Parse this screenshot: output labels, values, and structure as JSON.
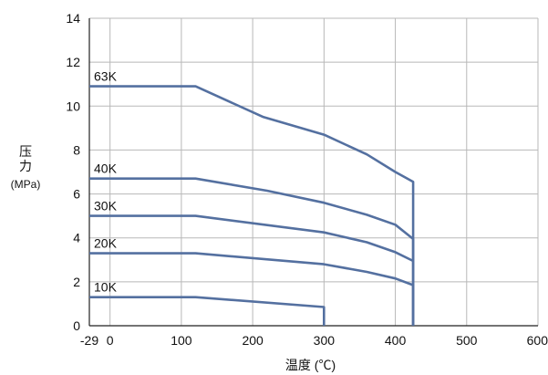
{
  "chart_data": {
    "type": "line",
    "title": "",
    "ylabel_lines": [
      "压",
      "力"
    ],
    "ylabel_unit": "(MPa)",
    "xlabel": "温度 (℃)",
    "xlim": [
      -29,
      600
    ],
    "ylim": [
      0,
      14
    ],
    "x_ticks": [
      0,
      100,
      200,
      300,
      400,
      500,
      600
    ],
    "x_tick_labels": [
      "0",
      "100",
      "200",
      "300",
      "400",
      "500",
      "600"
    ],
    "x_min_label": "-29",
    "y_ticks": [
      0,
      2,
      4,
      6,
      8,
      10,
      12,
      14
    ],
    "y_tick_labels": [
      "0",
      "2",
      "4",
      "6",
      "8",
      "10",
      "12",
      "14"
    ],
    "grid": true,
    "line_color": "#5470a0",
    "series": [
      {
        "name": "63K",
        "points": [
          [
            -29,
            10.9
          ],
          [
            120,
            10.9
          ],
          [
            215,
            9.5
          ],
          [
            300,
            8.7
          ],
          [
            360,
            7.8
          ],
          [
            400,
            7.0
          ],
          [
            425,
            6.55
          ],
          [
            425,
            0
          ]
        ]
      },
      {
        "name": "40K",
        "points": [
          [
            -29,
            6.7
          ],
          [
            120,
            6.7
          ],
          [
            220,
            6.15
          ],
          [
            300,
            5.6
          ],
          [
            360,
            5.05
          ],
          [
            400,
            4.6
          ],
          [
            425,
            3.95
          ],
          [
            425,
            0
          ]
        ]
      },
      {
        "name": "30K",
        "points": [
          [
            -29,
            5.0
          ],
          [
            120,
            5.0
          ],
          [
            300,
            4.25
          ],
          [
            360,
            3.8
          ],
          [
            400,
            3.35
          ],
          [
            425,
            2.95
          ]
        ]
      },
      {
        "name": "20K",
        "points": [
          [
            -29,
            3.3
          ],
          [
            120,
            3.3
          ],
          [
            300,
            2.8
          ],
          [
            360,
            2.45
          ],
          [
            400,
            2.15
          ],
          [
            425,
            1.85
          ],
          [
            425,
            0
          ]
        ]
      },
      {
        "name": "10K",
        "points": [
          [
            -29,
            1.3
          ],
          [
            120,
            1.3
          ],
          [
            300,
            0.85
          ],
          [
            300,
            0
          ]
        ]
      }
    ]
  }
}
